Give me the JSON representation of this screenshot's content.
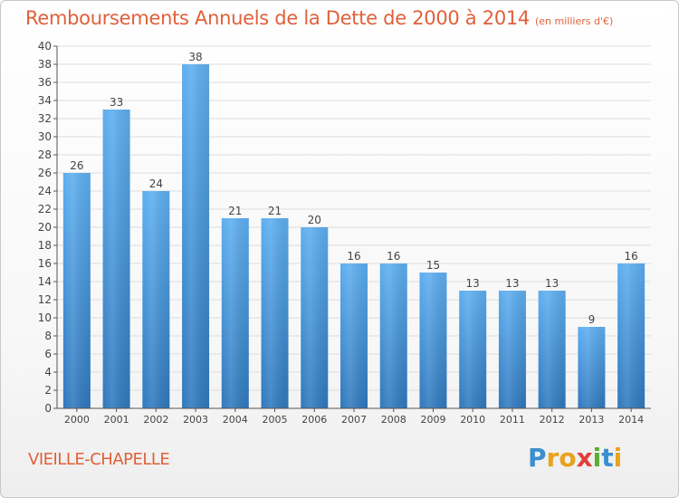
{
  "title": "Remboursements Annuels de la Dette de 2000 à 2014",
  "unit_note": "(en milliers d'€)",
  "commune": "VIEILLE-CHAPELLE",
  "logo": {
    "letters": [
      "P",
      "r",
      "o",
      "x",
      "i",
      "t",
      "i"
    ],
    "colors": [
      "#3a8fd0",
      "#e8a21c",
      "#e8a21c",
      "#e0403a",
      "#58b030",
      "#3a8fd0",
      "#e8a21c"
    ]
  },
  "colors": {
    "title": "#e0603a",
    "bar_top": "#5daef0",
    "bar_bottom": "#2f78bd",
    "grid": "#dddddd"
  },
  "chart_data": {
    "type": "bar",
    "title": "Remboursements Annuels de la Dette de 2000 à 2014",
    "xlabel": "",
    "ylabel": "",
    "categories": [
      "2000",
      "2001",
      "2002",
      "2003",
      "2004",
      "2005",
      "2006",
      "2007",
      "2008",
      "2009",
      "2010",
      "2011",
      "2012",
      "2013",
      "2014"
    ],
    "values": [
      26,
      33,
      24,
      38,
      21,
      21,
      20,
      16,
      16,
      15,
      13,
      13,
      13,
      9,
      16
    ],
    "ylim": [
      0,
      40
    ],
    "yticks": [
      0,
      2,
      4,
      6,
      8,
      10,
      12,
      14,
      16,
      18,
      20,
      22,
      24,
      26,
      28,
      30,
      32,
      34,
      36,
      38,
      40
    ],
    "grid": true
  }
}
